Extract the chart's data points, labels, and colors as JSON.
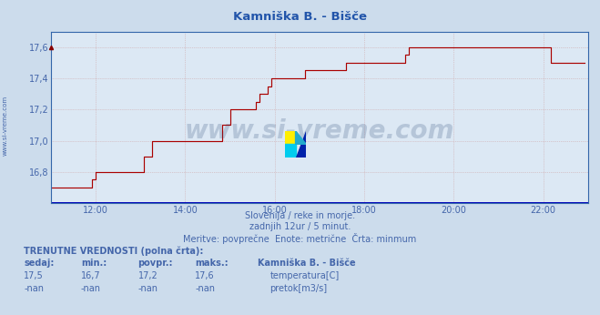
{
  "title": "Kamniška B. - Bišče",
  "bg_color": "#ccdcec",
  "plot_bg_color": "#dce8f4",
  "line_color_temp": "#aa0000",
  "line_color_pretok": "#0000bb",
  "grid_color": "#c8a0a0",
  "axis_label_color": "#4466aa",
  "title_color": "#2255aa",
  "xlim": [
    0,
    144
  ],
  "ylim": [
    16.6,
    17.7
  ],
  "ytick_vals": [
    16.8,
    17.0,
    17.2,
    17.4,
    17.6
  ],
  "xtick_positions": [
    12,
    36,
    60,
    84,
    108,
    132
  ],
  "xtick_labels": [
    "12:00",
    "14:00",
    "16:00",
    "18:00",
    "20:00",
    "22:00"
  ],
  "subtitle_line1": "Slovenija / reke in morje.",
  "subtitle_line2": "zadnjih 12ur / 5 minut.",
  "subtitle_line3": "Meritve: povprečne  Enote: metrične  Črta: minmum",
  "footer_title": "TRENUTNE VREDNOSTI (polna črta):",
  "footer_col_headers": [
    "sedaj:",
    "min.:",
    "povpr.:",
    "maks.:"
  ],
  "footer_temp_vals": [
    "17,5",
    "16,7",
    "17,2",
    "17,6"
  ],
  "footer_pretok_vals": [
    "-nan",
    "-nan",
    "-nan",
    "-nan"
  ],
  "legend_station": "Kamniška B. - Bišče",
  "legend_temp_label": "temperatura[C]",
  "legend_pretok_label": "pretok[m3/s]",
  "watermark": "www.si-vreme.com",
  "side_label": "www.si-vreme.com",
  "temp_values": [
    16.7,
    16.7,
    16.7,
    16.7,
    16.7,
    16.7,
    16.7,
    16.7,
    16.7,
    16.7,
    16.7,
    16.75,
    16.8,
    16.8,
    16.8,
    16.8,
    16.8,
    16.8,
    16.8,
    16.8,
    16.8,
    16.8,
    16.8,
    16.8,
    16.8,
    16.9,
    16.9,
    17.0,
    17.0,
    17.0,
    17.0,
    17.0,
    17.0,
    17.0,
    17.0,
    17.0,
    17.0,
    17.0,
    17.0,
    17.0,
    17.0,
    17.0,
    17.0,
    17.0,
    17.0,
    17.0,
    17.1,
    17.1,
    17.2,
    17.2,
    17.2,
    17.2,
    17.2,
    17.2,
    17.2,
    17.25,
    17.3,
    17.3,
    17.35,
    17.4,
    17.4,
    17.4,
    17.4,
    17.4,
    17.4,
    17.4,
    17.4,
    17.4,
    17.45,
    17.45,
    17.45,
    17.45,
    17.45,
    17.45,
    17.45,
    17.45,
    17.45,
    17.45,
    17.45,
    17.5,
    17.5,
    17.5,
    17.5,
    17.5,
    17.5,
    17.5,
    17.5,
    17.5,
    17.5,
    17.5,
    17.5,
    17.5,
    17.5,
    17.5,
    17.5,
    17.55,
    17.6,
    17.6,
    17.6,
    17.6,
    17.6,
    17.6,
    17.6,
    17.6,
    17.6,
    17.6,
    17.6,
    17.6,
    17.6,
    17.6,
    17.6,
    17.6,
    17.6,
    17.6,
    17.6,
    17.6,
    17.6,
    17.6,
    17.6,
    17.6,
    17.6,
    17.6,
    17.6,
    17.6,
    17.6,
    17.6,
    17.6,
    17.6,
    17.6,
    17.6,
    17.6,
    17.6,
    17.6,
    17.6,
    17.5,
    17.5,
    17.5,
    17.5,
    17.5,
    17.5,
    17.5,
    17.5,
    17.5,
    17.5
  ]
}
